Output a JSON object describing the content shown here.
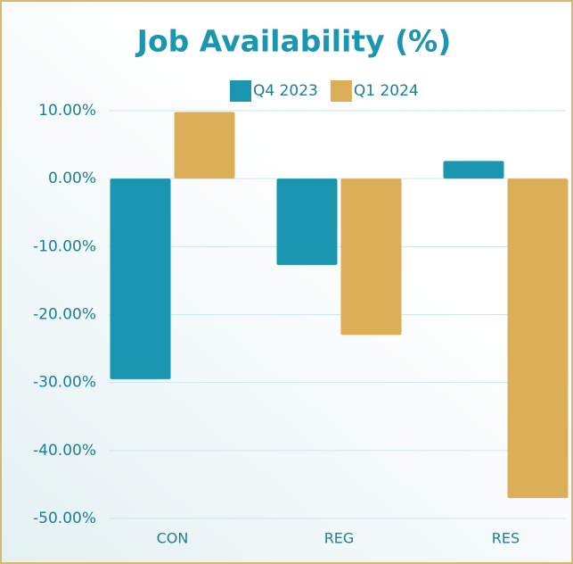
{
  "chart_data": {
    "type": "bar",
    "title": "Job Availability (%)",
    "categories": [
      "CON",
      "REG",
      "RES"
    ],
    "series": [
      {
        "name": "Q4 2023",
        "color": "#1a96b0",
        "values": [
          -29.5,
          -12.7,
          2.6
        ]
      },
      {
        "name": "Q1 2024",
        "color": "#dcae58",
        "values": [
          9.8,
          -23.0,
          -47.0
        ]
      }
    ],
    "ylim": [
      -50,
      10
    ],
    "yticks": [
      {
        "value": -50,
        "label": "-50.00%"
      },
      {
        "value": -40,
        "label": "-40.00%"
      },
      {
        "value": -30,
        "label": "-30.00%"
      },
      {
        "value": -20,
        "label": "-20.00%"
      },
      {
        "value": -10,
        "label": "-10.00%"
      },
      {
        "value": 0,
        "label": "0.00%"
      },
      {
        "value": 10,
        "label": "10.00%"
      }
    ],
    "grid": true,
    "legend": "top"
  }
}
